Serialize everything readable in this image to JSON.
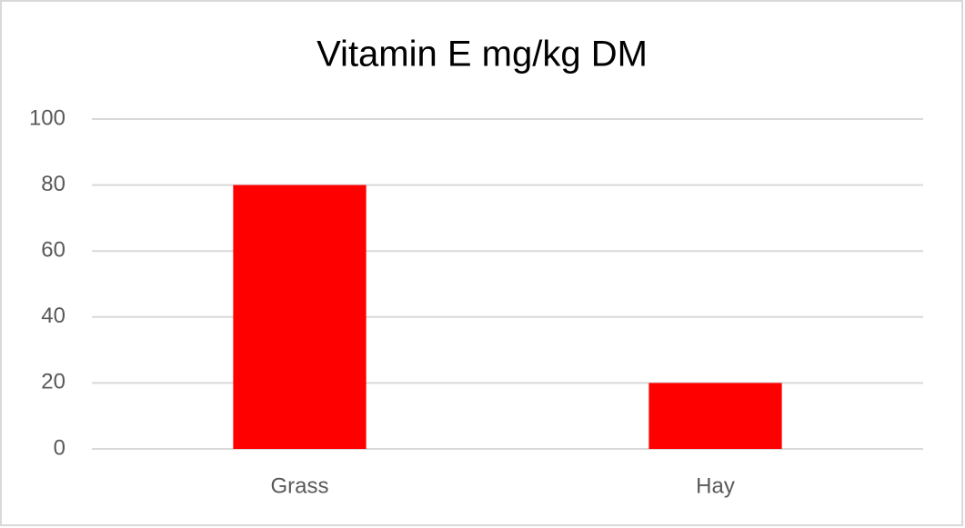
{
  "chart_data": {
    "type": "bar",
    "title": "Vitamin E mg/kg DM",
    "categories": [
      "Grass",
      "Hay"
    ],
    "values": [
      80,
      20
    ],
    "color": "#ff0000",
    "ylim": [
      0,
      100
    ],
    "yticks": [
      0,
      20,
      40,
      60,
      80,
      100
    ],
    "grid": true
  }
}
